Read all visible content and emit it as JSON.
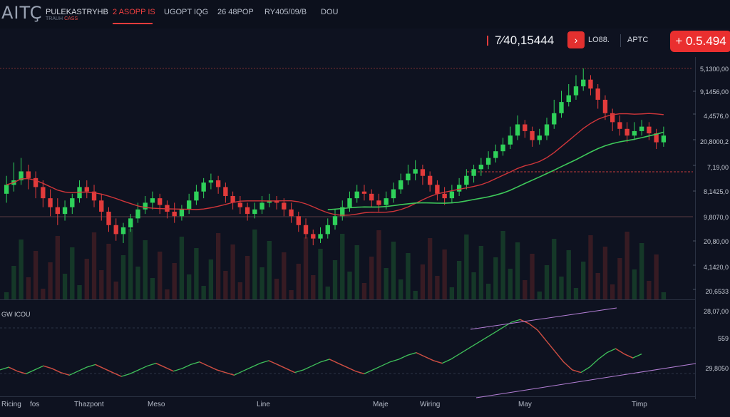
{
  "header": {
    "logo": "AITÇ",
    "pair_name": "PULEKASTRYHB",
    "pair_sub_a": "TRAUH",
    "pair_sub_b": "CASS",
    "tabs": [
      "2 ASOPP IS",
      "UGOPT IQG",
      "26 48POP",
      "RY405/09/B",
      "DOU"
    ]
  },
  "price_bar": {
    "price": "7⁄40,15444",
    "arrow": "›",
    "label": "LO88.",
    "symbol": "APTC",
    "change": "+ 0.5.494"
  },
  "right_axis": [
    "5,1300,00",
    "9,1456,00",
    "4,4576,0",
    "20,8000,2",
    "7,19,00",
    "8,1425,0",
    "9,8070,0",
    "20,80,00",
    "4,1420,0",
    "20,6533"
  ],
  "lower_axis": [
    "28,07,00",
    "559",
    "29,8050"
  ],
  "indicator_label": "GW ICOU",
  "bottom_axis": [
    "Ricing",
    "fos",
    "Thazpont",
    "Meso",
    "Line",
    "Maje",
    "Wiring",
    "May",
    "Timp"
  ],
  "colors": {
    "up": "#2fd15a",
    "down": "#e23b3b",
    "ma_red": "#d0363a",
    "ma_green": "#3ec95a",
    "indicator_trend": "#b47fd6"
  },
  "chart_data": {
    "type": "candlestick",
    "ylim": [
      0,
      100
    ],
    "candles": [
      [
        44,
        48,
        52,
        40
      ],
      [
        48,
        50,
        58,
        45
      ],
      [
        50,
        54,
        60,
        48
      ],
      [
        54,
        51,
        57,
        46
      ],
      [
        51,
        47,
        54,
        42
      ],
      [
        47,
        42,
        50,
        38
      ],
      [
        42,
        38,
        46,
        34
      ],
      [
        38,
        35,
        42,
        30
      ],
      [
        35,
        38,
        41,
        32
      ],
      [
        38,
        42,
        44,
        35
      ],
      [
        42,
        47,
        50,
        40
      ],
      [
        47,
        45,
        50,
        42
      ],
      [
        45,
        41,
        48,
        38
      ],
      [
        41,
        36,
        44,
        32
      ],
      [
        36,
        30,
        38,
        27
      ],
      [
        30,
        26,
        33,
        23
      ],
      [
        26,
        29,
        31,
        22
      ],
      [
        29,
        33,
        35,
        27
      ],
      [
        33,
        37,
        40,
        31
      ],
      [
        37,
        40,
        43,
        35
      ],
      [
        40,
        42,
        45,
        37
      ],
      [
        42,
        39,
        44,
        35
      ],
      [
        39,
        36,
        41,
        33
      ],
      [
        36,
        34,
        40,
        31
      ],
      [
        34,
        37,
        39,
        32
      ],
      [
        37,
        41,
        44,
        35
      ],
      [
        41,
        45,
        48,
        39
      ],
      [
        45,
        49,
        51,
        42
      ],
      [
        49,
        50,
        53,
        46
      ],
      [
        50,
        47,
        52,
        44
      ],
      [
        47,
        43,
        49,
        40
      ],
      [
        43,
        40,
        45,
        37
      ],
      [
        40,
        38,
        43,
        35
      ],
      [
        38,
        35,
        40,
        32
      ],
      [
        35,
        37,
        40,
        33
      ],
      [
        37,
        40,
        43,
        35
      ],
      [
        40,
        41,
        44,
        38
      ],
      [
        41,
        40,
        43,
        37
      ],
      [
        40,
        37,
        42,
        34
      ],
      [
        37,
        34,
        40,
        31
      ],
      [
        34,
        30,
        36,
        27
      ],
      [
        30,
        26,
        33,
        24
      ],
      [
        26,
        24,
        28,
        21
      ],
      [
        24,
        26,
        29,
        22
      ],
      [
        26,
        30,
        33,
        24
      ],
      [
        30,
        34,
        37,
        28
      ],
      [
        34,
        38,
        41,
        32
      ],
      [
        38,
        42,
        45,
        36
      ],
      [
        42,
        45,
        48,
        40
      ],
      [
        45,
        44,
        48,
        41
      ],
      [
        44,
        41,
        46,
        38
      ],
      [
        41,
        39,
        44,
        36
      ],
      [
        39,
        42,
        45,
        37
      ],
      [
        42,
        46,
        49,
        40
      ],
      [
        46,
        50,
        53,
        44
      ],
      [
        50,
        53,
        57,
        48
      ],
      [
        53,
        55,
        59,
        50
      ],
      [
        55,
        52,
        57,
        48
      ],
      [
        52,
        48,
        54,
        45
      ],
      [
        48,
        44,
        50,
        41
      ],
      [
        44,
        42,
        47,
        39
      ],
      [
        42,
        45,
        48,
        40
      ],
      [
        45,
        48,
        51,
        43
      ],
      [
        48,
        52,
        55,
        46
      ],
      [
        52,
        55,
        57,
        49
      ],
      [
        55,
        57,
        60,
        52
      ],
      [
        57,
        60,
        63,
        55
      ],
      [
        60,
        63,
        66,
        58
      ],
      [
        63,
        66,
        69,
        61
      ],
      [
        66,
        70,
        74,
        64
      ],
      [
        70,
        75,
        79,
        68
      ],
      [
        75,
        72,
        77,
        69
      ],
      [
        72,
        68,
        74,
        65
      ],
      [
        68,
        70,
        73,
        66
      ],
      [
        70,
        75,
        78,
        68
      ],
      [
        75,
        80,
        86,
        73
      ],
      [
        80,
        85,
        90,
        78
      ],
      [
        85,
        88,
        93,
        83
      ],
      [
        88,
        92,
        97,
        86
      ],
      [
        92,
        95,
        100,
        90
      ],
      [
        95,
        91,
        97,
        88
      ],
      [
        91,
        86,
        93,
        82
      ],
      [
        86,
        80,
        88,
        77
      ],
      [
        80,
        76,
        82,
        72
      ],
      [
        76,
        73,
        79,
        70
      ],
      [
        73,
        70,
        76,
        67
      ],
      [
        70,
        72,
        76,
        68
      ],
      [
        72,
        74,
        77,
        70
      ],
      [
        74,
        71,
        76,
        68
      ],
      [
        71,
        67,
        73,
        64
      ],
      [
        67,
        70,
        74,
        65
      ]
    ],
    "indicator": [
      50,
      52,
      49,
      47,
      50,
      53,
      51,
      48,
      46,
      49,
      52,
      54,
      51,
      48,
      45,
      47,
      50,
      53,
      55,
      52,
      49,
      51,
      54,
      56,
      53,
      50,
      48,
      46,
      49,
      52,
      55,
      57,
      54,
      51,
      48,
      50,
      53,
      56,
      58,
      55,
      52,
      49,
      47,
      50,
      53,
      56,
      58,
      61,
      63,
      60,
      57,
      55,
      58,
      62,
      66,
      70,
      74,
      78,
      82,
      86,
      88,
      85,
      80,
      72,
      64,
      56,
      50,
      48,
      52,
      58,
      63,
      66,
      62,
      59,
      62
    ]
  }
}
